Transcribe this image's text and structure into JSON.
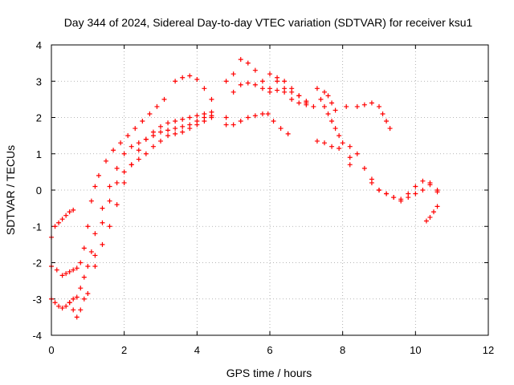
{
  "chart_data": {
    "type": "scatter",
    "title": "Day 344 of 2024, Sidereal Day-to-day VTEC variation (SDTVAR) for receiver ksu1",
    "xlabel": "GPS time / hours",
    "ylabel": "SDTVAR / TECUs",
    "xlim": [
      0,
      12
    ],
    "ylim": [
      -4,
      4
    ],
    "xticks": [
      "0",
      "2",
      "4",
      "6",
      "8",
      "10",
      "12"
    ],
    "yticks": [
      "-4",
      "-3",
      "-2",
      "-1",
      "0",
      "1",
      "2",
      "3",
      "4"
    ],
    "grid": true,
    "marker": "+",
    "color": "#ff0000",
    "series": [
      {
        "x": [
          0.0,
          0.1,
          0.2,
          0.3,
          0.4,
          0.5,
          0.6
        ],
        "y": [
          -1.3,
          -1.0,
          -0.9,
          -0.8,
          -0.7,
          -0.6,
          -0.55
        ]
      },
      {
        "x": [
          0.0,
          0.15,
          0.3,
          0.4,
          0.5,
          0.6,
          0.7,
          0.8,
          0.9,
          1.0,
          1.1,
          1.2,
          1.3,
          1.5,
          1.7,
          1.9,
          2.1,
          2.3,
          2.5,
          2.7,
          2.9,
          3.1
        ],
        "y": [
          -2.1,
          -2.2,
          -2.35,
          -2.3,
          -2.25,
          -2.2,
          -2.15,
          -2.0,
          -1.6,
          -1.0,
          -0.3,
          0.1,
          0.4,
          0.8,
          1.1,
          1.3,
          1.5,
          1.7,
          1.9,
          2.1,
          2.3,
          2.5
        ]
      },
      {
        "x": [
          0.0,
          0.1,
          0.2,
          0.3,
          0.4,
          0.5,
          0.6,
          0.7,
          0.8,
          0.9,
          1.0,
          1.1,
          1.2,
          1.4,
          1.6,
          1.8,
          2.0,
          2.2,
          2.4,
          2.6,
          2.8,
          3.0,
          3.2,
          3.4,
          3.6,
          3.8,
          4.0,
          4.2,
          4.4
        ],
        "y": [
          -3.0,
          -3.1,
          -3.2,
          -3.25,
          -3.2,
          -3.1,
          -3.0,
          -2.95,
          -2.7,
          -2.4,
          -2.1,
          -1.7,
          -1.2,
          -0.5,
          0.1,
          0.6,
          1.0,
          1.2,
          1.3,
          1.4,
          1.5,
          1.6,
          1.65,
          1.7,
          1.75,
          1.8,
          1.9,
          2.0,
          2.05
        ]
      },
      {
        "x": [
          0.5,
          0.6,
          0.7,
          0.8,
          0.9,
          1.0,
          1.2,
          1.4,
          1.6,
          1.8,
          2.0,
          2.2,
          2.4,
          2.6,
          2.8,
          3.0,
          3.2,
          3.4,
          3.6,
          3.8,
          4.0,
          4.2,
          4.4
        ],
        "y": [
          -3.1,
          -3.3,
          -3.5,
          -3.3,
          -3.0,
          -2.85,
          -1.8,
          -0.9,
          -0.3,
          0.2,
          0.5,
          0.7,
          0.85,
          1.0,
          1.2,
          1.35,
          1.5,
          1.55,
          1.6,
          1.7,
          1.8,
          1.9,
          2.0
        ]
      },
      {
        "x": [
          1.2,
          1.4,
          1.6,
          1.8,
          2.0,
          2.2,
          2.4,
          2.6,
          2.8,
          3.0,
          3.2,
          3.4,
          3.6,
          3.8,
          4.0,
          4.2,
          4.4
        ],
        "y": [
          -2.1,
          -1.5,
          -1.0,
          -0.4,
          0.2,
          0.7,
          1.1,
          1.4,
          1.6,
          1.75,
          1.85,
          1.9,
          1.95,
          2.0,
          2.05,
          2.1,
          2.15
        ]
      },
      {
        "x": [
          3.4,
          3.6,
          3.8,
          4.0,
          4.2,
          4.4
        ],
        "y": [
          3.0,
          3.1,
          3.15,
          3.05,
          2.8,
          2.5
        ]
      },
      {
        "x": [
          4.8,
          4.8,
          4.8
        ],
        "y": [
          3.0,
          2.0,
          1.8
        ]
      },
      {
        "x": [
          5.0,
          5.2,
          5.4,
          5.6,
          5.8,
          6.0,
          6.2,
          6.4,
          6.6,
          6.8,
          7.0,
          7.2
        ],
        "y": [
          3.2,
          3.6,
          3.5,
          3.3,
          3.0,
          2.8,
          3.1,
          3.0,
          2.8,
          2.6,
          2.4,
          2.3
        ]
      },
      {
        "x": [
          5.0,
          5.2,
          5.4,
          5.6,
          5.8,
          6.0,
          6.2,
          6.4,
          6.6,
          6.8,
          7.0
        ],
        "y": [
          2.7,
          2.9,
          2.95,
          2.9,
          2.8,
          2.7,
          2.75,
          2.7,
          2.5,
          2.4,
          2.35
        ]
      },
      {
        "x": [
          5.0,
          5.2,
          5.4,
          5.6,
          5.8
        ],
        "y": [
          1.8,
          1.9,
          2.0,
          2.05,
          2.1
        ]
      },
      {
        "x": [
          5.95,
          6.1,
          6.3,
          6.5
        ],
        "y": [
          2.1,
          1.9,
          1.7,
          1.55
        ]
      },
      {
        "x": [
          6.0,
          6.2,
          6.4,
          6.6,
          6.8,
          7.0
        ],
        "y": [
          3.2,
          3.0,
          2.8,
          2.7,
          2.6,
          2.45
        ]
      },
      {
        "x": [
          7.3,
          7.4,
          7.5,
          7.6,
          7.7,
          7.8,
          7.9,
          8.0
        ],
        "y": [
          2.8,
          2.5,
          2.3,
          2.1,
          1.9,
          1.7,
          1.5,
          1.3
        ]
      },
      {
        "x": [
          7.3,
          7.5,
          7.7,
          7.9
        ],
        "y": [
          1.35,
          1.3,
          1.2,
          1.15
        ]
      },
      {
        "x": [
          7.5,
          7.6,
          7.7,
          7.8
        ],
        "y": [
          2.7,
          2.6,
          2.4,
          2.2
        ]
      },
      {
        "x": [
          8.1,
          8.2
        ],
        "y": [
          2.3,
          1.2
        ]
      },
      {
        "x": [
          8.2,
          8.2
        ],
        "y": [
          0.9,
          0.7
        ]
      },
      {
        "x": [
          8.4,
          8.6,
          8.8,
          9.0,
          9.1,
          9.2,
          9.3
        ],
        "y": [
          2.3,
          2.35,
          2.4,
          2.3,
          2.1,
          1.9,
          1.7
        ]
      },
      {
        "x": [
          8.4,
          8.6,
          8.8,
          9.0,
          9.2,
          9.4,
          9.6,
          9.8,
          10.0,
          10.2,
          10.4,
          10.6
        ],
        "y": [
          1.0,
          0.6,
          0.3,
          0.0,
          -0.1,
          -0.2,
          -0.25,
          -0.2,
          -0.1,
          0.0,
          0.2,
          0.0
        ]
      },
      {
        "x": [
          8.8,
          9.0,
          9.2,
          9.4,
          9.6,
          9.8,
          10.0,
          10.2,
          10.4,
          10.6
        ],
        "y": [
          0.2,
          0.0,
          -0.1,
          -0.2,
          -0.3,
          -0.1,
          0.1,
          0.25,
          0.15,
          -0.05
        ]
      },
      {
        "x": [
          10.3,
          10.4,
          10.5,
          10.6
        ],
        "y": [
          -0.85,
          -0.75,
          -0.6,
          -0.45
        ]
      }
    ]
  }
}
